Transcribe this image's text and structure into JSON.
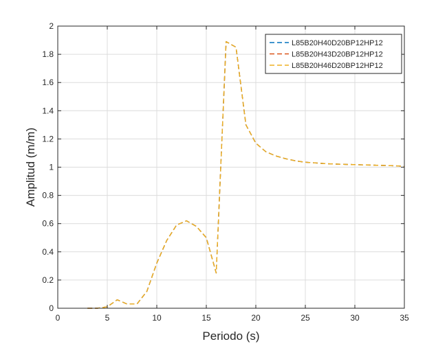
{
  "chart_data": {
    "type": "line",
    "title": "",
    "xlabel": "Periodo (s)",
    "ylabel": "Amplitud (m/m)",
    "xlim": [
      0,
      35
    ],
    "ylim": [
      0,
      2
    ],
    "xticks": [
      0,
      5,
      10,
      15,
      20,
      25,
      30,
      35
    ],
    "yticks": [
      0,
      0.2,
      0.4,
      0.6,
      0.8,
      1,
      1.2,
      1.4,
      1.6,
      1.8,
      2
    ],
    "xtick_labels": [
      "0",
      "5",
      "10",
      "15",
      "20",
      "25",
      "30",
      "35"
    ],
    "ytick_labels": [
      "0",
      "0.2",
      "0.4",
      "0.6",
      "0.8",
      "1",
      "1.2",
      "1.4",
      "1.6",
      "1.8",
      "2"
    ],
    "grid": true,
    "legend_position": "top-right",
    "x": [
      3,
      4,
      5,
      6,
      7,
      8,
      9,
      10,
      11,
      12,
      13,
      14,
      15,
      16,
      17,
      18,
      19,
      20,
      21,
      22,
      23,
      24,
      25,
      26,
      27,
      28,
      29,
      30,
      31,
      32,
      33,
      34,
      35
    ],
    "series": [
      {
        "name": "L85B20H40D20BP12HP12",
        "color": "#0072BD",
        "values": [
          0.0,
          0.0,
          0.01,
          0.06,
          0.03,
          0.03,
          0.12,
          0.32,
          0.48,
          0.59,
          0.62,
          0.58,
          0.5,
          0.25,
          1.89,
          1.85,
          1.3,
          1.17,
          1.11,
          1.08,
          1.06,
          1.045,
          1.035,
          1.03,
          1.025,
          1.022,
          1.02,
          1.018,
          1.016,
          1.014,
          1.012,
          1.01,
          1.005
        ]
      },
      {
        "name": "L85B20H43D20BP12HP12",
        "color": "#D95319",
        "values": [
          0.0,
          0.0,
          0.01,
          0.06,
          0.03,
          0.03,
          0.12,
          0.32,
          0.48,
          0.59,
          0.62,
          0.58,
          0.5,
          0.25,
          1.89,
          1.85,
          1.3,
          1.17,
          1.11,
          1.08,
          1.06,
          1.045,
          1.035,
          1.03,
          1.025,
          1.022,
          1.02,
          1.018,
          1.016,
          1.014,
          1.012,
          1.01,
          1.005
        ]
      },
      {
        "name": "L85B20H46D20BP12HP12",
        "color": "#EDB120",
        "values": [
          0.0,
          0.0,
          0.01,
          0.06,
          0.03,
          0.03,
          0.12,
          0.32,
          0.48,
          0.59,
          0.62,
          0.58,
          0.5,
          0.25,
          1.89,
          1.85,
          1.3,
          1.17,
          1.11,
          1.08,
          1.06,
          1.045,
          1.035,
          1.03,
          1.025,
          1.022,
          1.02,
          1.018,
          1.016,
          1.014,
          1.012,
          1.01,
          1.005
        ]
      }
    ]
  }
}
